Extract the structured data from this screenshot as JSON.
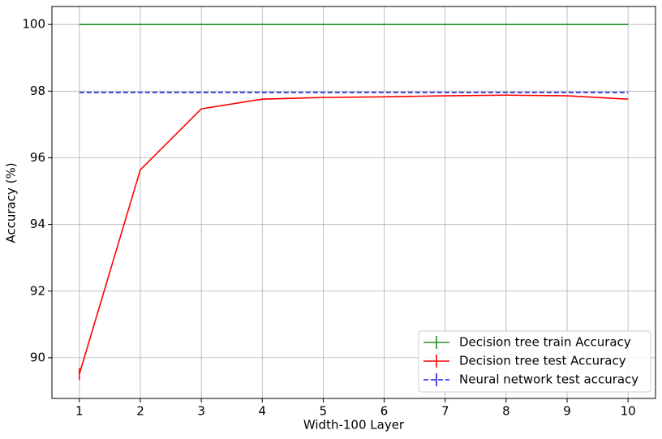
{
  "chart_data": {
    "type": "line",
    "x_label": "Width-100 Layer",
    "y_label": "Accuracy (%)",
    "x": [
      1,
      2,
      3,
      4,
      5,
      6,
      7,
      8,
      9,
      10
    ],
    "series": [
      {
        "name": "Decision tree train Accuracy",
        "color": "#2a8a2a",
        "linestyle": "solid",
        "values": [
          100,
          100,
          100,
          100,
          100,
          100,
          100,
          100,
          100,
          100
        ],
        "errors": [
          0,
          0,
          0,
          0,
          0,
          0,
          0,
          0,
          0,
          0
        ]
      },
      {
        "name": "Decision tree test Accuracy",
        "color": "#ff0000",
        "linestyle": "solid",
        "values": [
          89.51,
          95.64,
          97.47,
          97.76,
          97.81,
          97.83,
          97.86,
          97.88,
          97.86,
          97.76
        ],
        "errors": [
          0.18,
          0,
          0,
          0,
          0.02,
          0,
          0,
          0.02,
          0,
          0
        ]
      },
      {
        "name": "Neural network test accuracy",
        "color": "#1f1fdd",
        "linestyle": "dashed",
        "values": [
          97.96,
          97.96,
          97.96,
          97.96,
          97.96,
          97.96,
          97.96,
          97.96,
          97.96,
          97.96
        ],
        "errors": [
          0,
          0,
          0,
          0,
          0,
          0,
          0,
          0,
          0,
          0
        ]
      }
    ],
    "xlim": [
      0.55,
      10.45
    ],
    "xticks": [
      1,
      2,
      3,
      4,
      5,
      6,
      7,
      8,
      9,
      10
    ],
    "ylim": [
      88.78,
      100.54
    ],
    "yticks": [
      90,
      92,
      94,
      96,
      98,
      100
    ],
    "grid": true,
    "legend": "lower right"
  }
}
